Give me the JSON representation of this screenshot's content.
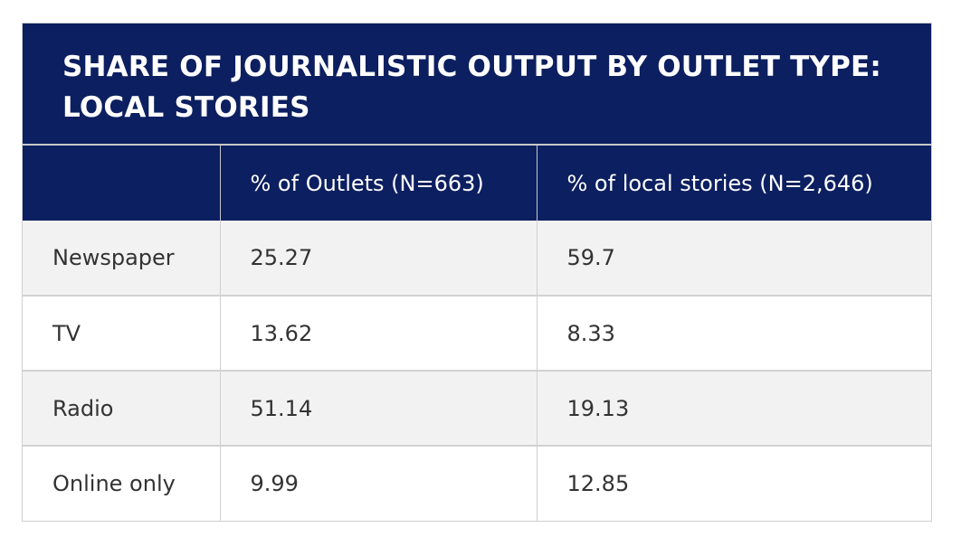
{
  "chart_data": {
    "type": "table",
    "title": "SHARE OF JOURNALISTIC OUTPUT BY OUTLET TYPE: LOCAL STORIES",
    "columns": [
      "",
      "% of Outlets (N=663)",
      "% of local stories (N=2,646)"
    ],
    "rows": [
      {
        "label": "Newspaper",
        "values": [
          "25.27",
          "59.7"
        ]
      },
      {
        "label": "TV",
        "values": [
          "13.62",
          "8.33"
        ]
      },
      {
        "label": "Radio",
        "values": [
          "51.14",
          "19.13"
        ]
      },
      {
        "label": "Online only",
        "values": [
          "9.99",
          "12.85"
        ]
      }
    ]
  },
  "colors": {
    "header_bg": "#0c1f60",
    "header_text": "#ffffff",
    "row_alt_bg": "#f2f2f2",
    "body_text": "#333333"
  }
}
